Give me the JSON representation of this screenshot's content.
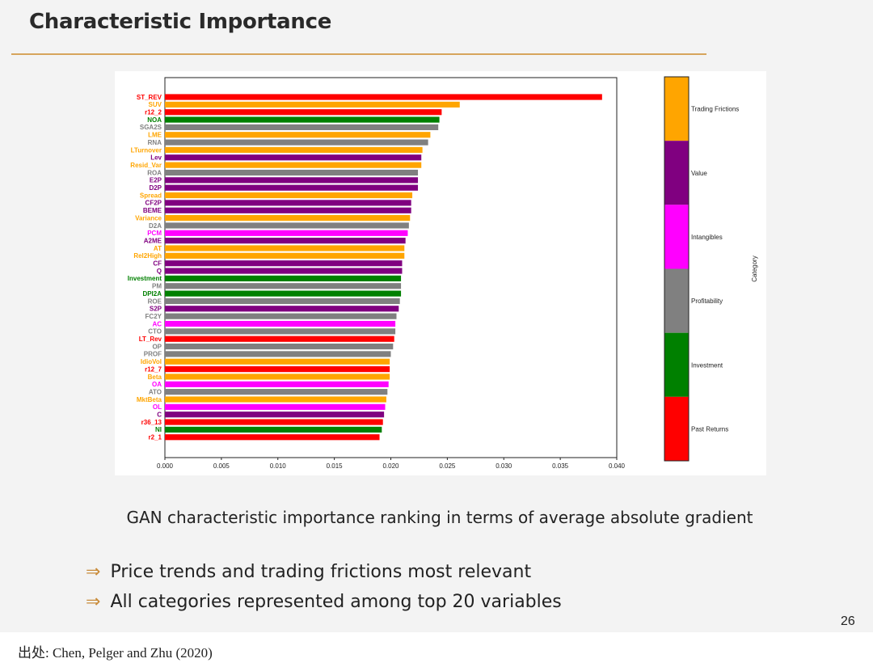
{
  "slide": {
    "title": "Characteristic Importance",
    "caption": "GAN characteristic importance ranking in terms of average absolute gradient",
    "bullets": [
      {
        "arrow": "⇒",
        "text": "Price trends and trading frictions most relevant"
      },
      {
        "arrow": "⇒",
        "text": "All categories represented among top 20 variables"
      }
    ],
    "page_number": "26",
    "source": "出处:  Chen, Pelger and Zhu (2020)"
  },
  "chart_data": {
    "type": "bar",
    "orientation": "horizontal",
    "title": "",
    "xlabel": "",
    "ylabel": "",
    "xlim": [
      0,
      0.04
    ],
    "xticks": [
      "0.000",
      "0.005",
      "0.010",
      "0.015",
      "0.020",
      "0.025",
      "0.030",
      "0.035",
      "0.040"
    ],
    "categories": [
      "ST_REV",
      "SUV",
      "r12_2",
      "NOA",
      "SGA2S",
      "LME",
      "RNA",
      "LTurnover",
      "Lev",
      "Resid_Var",
      "ROA",
      "E2P",
      "D2P",
      "Spread",
      "CF2P",
      "BEME",
      "Variance",
      "D2A",
      "PCM",
      "A2ME",
      "AT",
      "Rel2High",
      "CF",
      "Q",
      "Investment",
      "PM",
      "DPI2A",
      "ROE",
      "S2P",
      "FC2Y",
      "AC",
      "CTO",
      "LT_Rev",
      "OP",
      "PROF",
      "IdioVol",
      "r12_7",
      "Beta",
      "OA",
      "ATO",
      "MktBeta",
      "OL",
      "C",
      "r36_13",
      "NI",
      "r2_1"
    ],
    "values": [
      0.0387,
      0.0261,
      0.0245,
      0.0243,
      0.0242,
      0.0235,
      0.0233,
      0.0228,
      0.0227,
      0.0227,
      0.0224,
      0.0224,
      0.0224,
      0.0219,
      0.0218,
      0.0218,
      0.0217,
      0.0216,
      0.0215,
      0.0213,
      0.0212,
      0.0212,
      0.021,
      0.021,
      0.0209,
      0.0209,
      0.0209,
      0.0208,
      0.0207,
      0.0205,
      0.0204,
      0.0204,
      0.0203,
      0.0202,
      0.02,
      0.0199,
      0.0199,
      0.0199,
      0.0198,
      0.0197,
      0.0196,
      0.0195,
      0.0194,
      0.0193,
      0.0192,
      0.019
    ],
    "bar_categories": [
      "Past Returns",
      "Trading Frictions",
      "Past Returns",
      "Investment",
      "Profitability",
      "Trading Frictions",
      "Profitability",
      "Trading Frictions",
      "Value",
      "Trading Frictions",
      "Profitability",
      "Value",
      "Value",
      "Trading Frictions",
      "Value",
      "Value",
      "Trading Frictions",
      "Profitability",
      "Intangibles",
      "Value",
      "Trading Frictions",
      "Trading Frictions",
      "Value",
      "Value",
      "Investment",
      "Profitability",
      "Investment",
      "Profitability",
      "Value",
      "Profitability",
      "Intangibles",
      "Profitability",
      "Past Returns",
      "Profitability",
      "Profitability",
      "Trading Frictions",
      "Past Returns",
      "Trading Frictions",
      "Intangibles",
      "Profitability",
      "Trading Frictions",
      "Intangibles",
      "Value",
      "Past Returns",
      "Investment",
      "Past Returns"
    ],
    "legend": {
      "title": "Category",
      "placement": "right",
      "items": [
        {
          "name": "Trading Frictions",
          "color": "#ffa500"
        },
        {
          "name": "Value",
          "color": "#800080"
        },
        {
          "name": "Intangibles",
          "color": "#ff00ff"
        },
        {
          "name": "Profitability",
          "color": "#808080"
        },
        {
          "name": "Investment",
          "color": "#008000"
        },
        {
          "name": "Past Returns",
          "color": "#ff0000"
        }
      ]
    },
    "grid": false
  }
}
